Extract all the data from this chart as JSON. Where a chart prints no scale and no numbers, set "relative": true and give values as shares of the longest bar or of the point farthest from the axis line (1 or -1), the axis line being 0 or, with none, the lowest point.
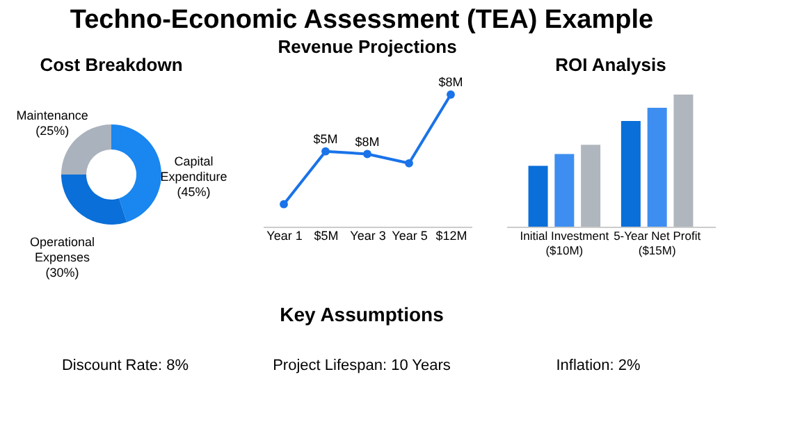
{
  "chart_data": [
    {
      "type": "other",
      "title": "Techno-Economic Assessment (TEA) Example"
    },
    {
      "type": "donut",
      "title": "Cost Breakdown",
      "categories": [
        "Capital Expenditure",
        "Operational Expenses",
        "Maintenance"
      ],
      "values": [
        45,
        30,
        25
      ],
      "value_labels": [
        "(45%)",
        "(30%)",
        "(25%)"
      ],
      "colors": [
        "#1a86ef",
        "#0a6fd8",
        "#aab2bd"
      ]
    },
    {
      "type": "line",
      "title": "Revenue Projections",
      "relative": true,
      "categories": [
        "Year 1",
        "$5M",
        "Year 3",
        "Year 5",
        "$12M"
      ],
      "series": [
        {
          "color": "#1a73e8",
          "values": [
            0.17,
            0.57,
            0.55,
            0.48,
            1.0
          ]
        }
      ],
      "value_labels": [
        null,
        "$5M",
        "$8M",
        null,
        "$8M"
      ],
      "marker": "circle",
      "line_style": "solid"
    },
    {
      "type": "bar",
      "title": "ROI Analysis",
      "relative": true,
      "categories": [
        "Initial Investment ($10M)",
        "5-Year Net Profit ($15M)"
      ],
      "series": [
        {
          "color": "#0a6fd8",
          "values": [
            0.46,
            0.8
          ]
        },
        {
          "color": "#3d8ef0",
          "values": [
            0.55,
            0.9
          ]
        },
        {
          "color": "#b0b6bd",
          "values": [
            0.62,
            1.0
          ]
        }
      ]
    },
    {
      "type": "other",
      "title": "Key Assumptions",
      "annotations": [
        "Discount Rate: 8%",
        "Project Lifespan: 10 Years",
        "Inflation: 2%"
      ]
    }
  ]
}
